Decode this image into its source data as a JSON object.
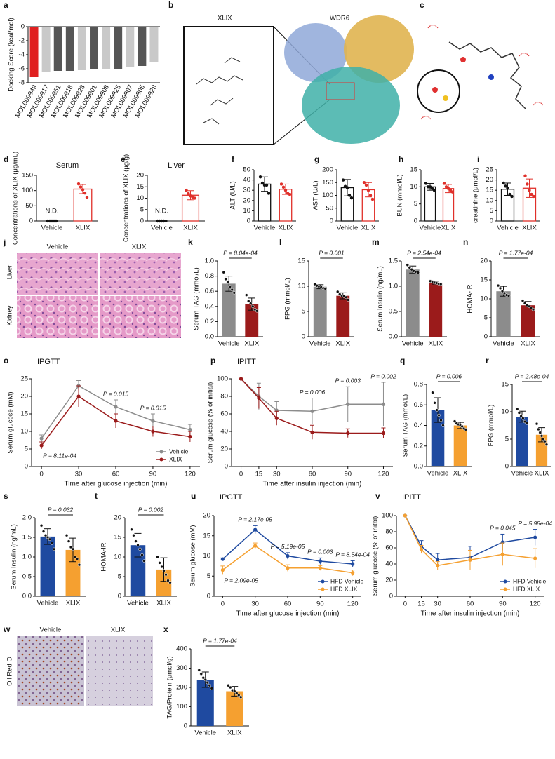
{
  "figures": [
    {
      "panel": "b",
      "labels": [
        "XLIX",
        "WDR6"
      ]
    },
    {
      "panel": "c"
    },
    {
      "panel": "j",
      "columns": [
        "Vehicle",
        "XLIX"
      ],
      "rows": [
        "Liver",
        "Kidney"
      ]
    },
    {
      "panel": "w",
      "columns": [
        "Vehicle",
        "XLIX"
      ],
      "rows": [
        "Oil Red O"
      ]
    }
  ],
  "chart_data": [
    {
      "panel": "a",
      "type": "bar",
      "ylabel": "Docking Score (kcal/mol)",
      "categories": [
        "MOL009949",
        "MOL009917",
        "MOL009951",
        "MOL009918",
        "MOL009923",
        "MOL009901",
        "MOL009908",
        "MOL009925",
        "MOL009907",
        "MOL009905",
        "MOL009928"
      ],
      "values": [
        -7.2,
        -6.5,
        -6.3,
        -6.3,
        -6.2,
        -6.1,
        -6.1,
        -6.0,
        -5.8,
        -5.6,
        -5.1
      ],
      "colors": [
        "#e02020",
        "#c9c9c9",
        "#555555",
        "#555555",
        "#c9c9c9",
        "#555555",
        "#c9c9c9",
        "#555555",
        "#c9c9c9",
        "#555555",
        "#c9c9c9"
      ],
      "highlight_index": 0,
      "ylim": [
        -8,
        0
      ],
      "yticks": [
        0,
        -2,
        -4,
        -6,
        -8
      ]
    },
    {
      "panel": "d",
      "type": "bar",
      "style": "outline",
      "title": "Serum",
      "ylabel": "Concentrations of XLIX (μg/mL)",
      "categories": [
        "Vehicle",
        "XLIX"
      ],
      "values": [
        null,
        105
      ],
      "value_labels": [
        "N.D.",
        null
      ],
      "errors": [
        null,
        15
      ],
      "points": [
        [
          0,
          0,
          0,
          0,
          0
        ],
        [
          122,
          112,
          103,
          92,
          78
        ]
      ],
      "colors": [
        "#111111",
        "#e0302a"
      ],
      "ylim": [
        0,
        150
      ],
      "yticks": [
        0,
        50,
        100,
        150
      ]
    },
    {
      "panel": "e",
      "type": "bar",
      "style": "outline",
      "title": "Liver",
      "ylabel": "Concentrations of XLIX (μg/g)",
      "categories": [
        "Vehicle",
        "XLIX"
      ],
      "values": [
        null,
        11.3
      ],
      "value_labels": [
        "N.D.",
        null
      ],
      "errors": [
        null,
        2
      ],
      "points": [
        [
          0,
          0,
          0,
          0,
          0
        ],
        [
          13.5,
          12,
          11,
          10.5,
          10
        ]
      ],
      "colors": [
        "#111111",
        "#e0302a"
      ],
      "ylim": [
        0,
        20
      ],
      "yticks": [
        0,
        5,
        10,
        15,
        20
      ]
    },
    {
      "panel": "f",
      "type": "bar",
      "style": "outline",
      "ylabel": "ALT (U/L)",
      "categories": [
        "Vehicle",
        "XLIX"
      ],
      "values": [
        36,
        31
      ],
      "errors": [
        7,
        5
      ],
      "points": [
        [
          43,
          37,
          35,
          35,
          27
        ],
        [
          36,
          33,
          30,
          27,
          26
        ]
      ],
      "colors": [
        "#111111",
        "#e0302a"
      ],
      "ylim": [
        0,
        50
      ],
      "yticks": [
        0,
        10,
        20,
        30,
        40,
        50
      ]
    },
    {
      "panel": "g",
      "type": "bar",
      "style": "outline",
      "ylabel": "AST (U/L)",
      "categories": [
        "Vehicle",
        "XLIX"
      ],
      "values": [
        130,
        122
      ],
      "errors": [
        32,
        28
      ],
      "points": [
        [
          160,
          135,
          130,
          100,
          90
        ],
        [
          150,
          140,
          120,
          100,
          85
        ]
      ],
      "colors": [
        "#111111",
        "#e0302a"
      ],
      "ylim": [
        0,
        200
      ],
      "yticks": [
        0,
        50,
        100,
        150,
        200
      ]
    },
    {
      "panel": "h",
      "type": "bar",
      "style": "outline",
      "ylabel": "BUN (mmol/L)",
      "categories": [
        "Vehicle",
        "XLIX"
      ],
      "values": [
        10,
        9.5
      ],
      "errors": [
        1,
        1.2
      ],
      "points": [
        [
          11,
          10,
          10,
          9.5,
          9
        ],
        [
          11,
          10,
          9.5,
          9,
          8.5
        ]
      ],
      "colors": [
        "#111111",
        "#e0302a"
      ],
      "ylim": [
        0,
        15
      ],
      "yticks": [
        0,
        5,
        10,
        15
      ]
    },
    {
      "panel": "i",
      "type": "bar",
      "style": "outline",
      "ylabel": "creatinine (μmol/L)",
      "categories": [
        "Vehicle",
        "XLIX"
      ],
      "values": [
        15.5,
        16
      ],
      "errors": [
        3,
        4.5
      ],
      "points": [
        [
          18.5,
          17,
          16,
          13,
          12
        ],
        [
          22,
          18,
          15,
          13,
          12
        ]
      ],
      "colors": [
        "#111111",
        "#e0302a"
      ],
      "ylim": [
        0,
        25
      ],
      "yticks": [
        0,
        5,
        10,
        15,
        20,
        25
      ]
    },
    {
      "panel": "k",
      "type": "bar",
      "ylabel": "Serum TAG (mmol/L)",
      "p_value": "P = 8.04e-04",
      "categories": [
        "Vehicle",
        "XLIX"
      ],
      "values": [
        0.7,
        0.43
      ],
      "errors": [
        0.1,
        0.08
      ],
      "points": [
        [
          0.85,
          0.76,
          0.72,
          0.66,
          0.62,
          0.58
        ],
        [
          0.55,
          0.47,
          0.44,
          0.4,
          0.36,
          0.34
        ]
      ],
      "colors": [
        "#8c8c8c",
        "#9b1b1b"
      ],
      "ylim": [
        0,
        1
      ],
      "yticks": [
        {
          "value": 0,
          "label": "0.0"
        },
        0.2,
        0.4,
        0.6,
        0.8,
        {
          "value": 1,
          "label": "1.0"
        }
      ]
    },
    {
      "panel": "l",
      "type": "bar",
      "ylabel": "FPG  (mmol/L)",
      "p_value": "P = 0.001",
      "categories": [
        "Vehicle",
        "XLIX"
      ],
      "values": [
        9.9,
        8.1
      ],
      "errors": [
        0.4,
        0.6
      ],
      "points": [
        [
          10.4,
          10.1,
          9.9,
          9.8,
          9.6,
          9.5
        ],
        [
          8.9,
          8.4,
          8.1,
          8,
          7.8,
          7.3
        ]
      ],
      "colors": [
        "#8c8c8c",
        "#9b1b1b"
      ],
      "ylim": [
        0,
        15
      ],
      "yticks": [
        0,
        5,
        10,
        15
      ]
    },
    {
      "panel": "m",
      "type": "bar",
      "ylabel": "Serum Insulin (ng/mL)",
      "p_value": "P = 2.54e-04",
      "categories": [
        "Vehicle",
        "XLIX"
      ],
      "values": [
        1.33,
        1.07
      ],
      "errors": [
        0.07,
        0.03
      ],
      "points": [
        [
          1.42,
          1.37,
          1.33,
          1.3,
          1.28,
          1.27
        ],
        [
          1.1,
          1.09,
          1.07,
          1.06,
          1.05,
          1.04
        ]
      ],
      "colors": [
        "#8c8c8c",
        "#9b1b1b"
      ],
      "ylim": [
        0,
        1.5
      ],
      "yticks": [
        {
          "value": 0,
          "label": "0.0"
        },
        0.5,
        {
          "value": 1,
          "label": "1.0"
        },
        1.5
      ]
    },
    {
      "panel": "n",
      "type": "bar",
      "ylabel": "HOMA-IR",
      "p_value": "P = 1.77e-04",
      "categories": [
        "Vehicle",
        "XLIX"
      ],
      "values": [
        12,
        8.3
      ],
      "errors": [
        1.3,
        1
      ],
      "points": [
        [
          13.5,
          12.8,
          12,
          11.5,
          11,
          10.8
        ],
        [
          9.5,
          8.8,
          8.3,
          8,
          7.6,
          7.2
        ]
      ],
      "colors": [
        "#8c8c8c",
        "#9b1b1b"
      ],
      "ylim": [
        0,
        20
      ],
      "yticks": [
        0,
        5,
        10,
        15,
        20
      ]
    },
    {
      "panel": "o",
      "type": "line",
      "title": "IPGTT",
      "xlabel": "Time after glucose injection (min)",
      "ylabel": "Serum glucose (mM)",
      "x": [
        0,
        30,
        60,
        90,
        120
      ],
      "xlim": [
        -8,
        128
      ],
      "xticks": [
        0,
        30,
        60,
        90,
        120
      ],
      "ylim": [
        0,
        25
      ],
      "yticks": [
        0,
        5,
        10,
        15,
        20,
        25
      ],
      "legend": "lower right",
      "p_values": [
        "P = 8.11e-04",
        null,
        "P = 0.015",
        "P = 0.015",
        null
      ],
      "series": [
        {
          "name": "Vehicle",
          "color": "#8c8c8c",
          "values": [
            8,
            23,
            17,
            13,
            10.5
          ],
          "errors": [
            1,
            1.5,
            2,
            2,
            1.5
          ]
        },
        {
          "name": "XLIX",
          "color": "#9b1b1b",
          "values": [
            6,
            20,
            13,
            10,
            8.5
          ],
          "errors": [
            1,
            3,
            2,
            1.5,
            1.5
          ]
        }
      ]
    },
    {
      "panel": "p",
      "type": "line",
      "title": "IPITT",
      "xlabel": "Time after insulin injection (min)",
      "ylabel": "Serum glucose (% of initial)",
      "x": [
        0,
        15,
        30,
        60,
        90,
        120
      ],
      "xlim": [
        -8,
        128
      ],
      "xticks": [
        0,
        15,
        30,
        60,
        90,
        120
      ],
      "ylim": [
        0,
        100
      ],
      "yticks": [
        0,
        20,
        40,
        60,
        80,
        100
      ],
      "p_values": [
        null,
        null,
        null,
        "P = 0.006",
        "P = 0.003",
        "P = 0.002"
      ],
      "series": [
        {
          "color": "#8c8c8c",
          "values": [
            100,
            80,
            64,
            63,
            71,
            71
          ],
          "errors": [
            0,
            15,
            10,
            15,
            20,
            25
          ]
        },
        {
          "color": "#9b1b1b",
          "values": [
            100,
            78,
            55,
            39,
            38,
            38
          ],
          "errors": [
            0,
            12,
            8,
            8,
            5,
            6
          ]
        }
      ]
    },
    {
      "panel": "q",
      "type": "bar",
      "ylabel": "Serum TAG (mmol/L)",
      "p_value": "P = 0.006",
      "categories": [
        "Vehicle",
        "XLIX"
      ],
      "values": [
        0.55,
        0.4
      ],
      "errors": [
        0.12,
        0.03
      ],
      "points": [
        [
          0.72,
          0.62,
          0.55,
          0.5,
          0.45,
          0.4
        ],
        [
          0.44,
          0.42,
          0.41,
          0.4,
          0.39,
          0.37,
          0.36
        ]
      ],
      "colors": [
        "#1f4aa0",
        "#f5a030"
      ],
      "ylim": [
        0,
        0.8
      ],
      "yticks": [
        {
          "value": 0,
          "label": "0.0"
        },
        0.2,
        0.4,
        0.6,
        0.8
      ]
    },
    {
      "panel": "r",
      "type": "bar",
      "ylabel": "FPG (mmol/L)",
      "p_value": "P = 2.48e-04",
      "categories": [
        "Vehicle",
        "XLIX"
      ],
      "values": [
        9.1,
        5.8
      ],
      "errors": [
        1,
        1.3
      ],
      "points": [
        [
          10.5,
          9.8,
          9.2,
          8.8,
          8.2,
          7.9
        ],
        [
          7.8,
          6.8,
          6.2,
          5.6,
          5,
          4.6,
          4
        ]
      ],
      "colors": [
        "#1f4aa0",
        "#f5a030"
      ],
      "ylim": [
        0,
        15
      ],
      "yticks": [
        0,
        5,
        10,
        15
      ]
    },
    {
      "panel": "s",
      "type": "bar",
      "ylabel": "Serum Insulin (ng/mL)",
      "p_value": "P = 0.032",
      "categories": [
        "Vehicle",
        "XLIX"
      ],
      "values": [
        1.52,
        1.18
      ],
      "errors": [
        0.2,
        0.3
      ],
      "points": [
        [
          1.8,
          1.65,
          1.55,
          1.5,
          1.45,
          1.35,
          1.2
        ],
        [
          1.55,
          1.4,
          1.25,
          1.2,
          1,
          0.95,
          0.8
        ]
      ],
      "colors": [
        "#1f4aa0",
        "#f5a030"
      ],
      "ylim": [
        0,
        2
      ],
      "yticks": [
        {
          "value": 0,
          "label": "0.0"
        },
        0.5,
        {
          "value": 1,
          "label": "1.0"
        },
        1.5,
        {
          "value": 2,
          "label": "2.0"
        }
      ]
    },
    {
      "panel": "t",
      "type": "bar",
      "ylabel": "HOMA-IR",
      "p_value": "P = 0.002",
      "categories": [
        "Vehicle",
        "XLIX"
      ],
      "values": [
        13,
        6.8
      ],
      "errors": [
        3,
        3
      ],
      "points": [
        [
          17,
          15.5,
          14,
          13,
          12,
          10.5,
          9
        ],
        [
          10,
          8.5,
          7.5,
          6.5,
          5.5,
          4,
          3.5
        ]
      ],
      "colors": [
        "#1f4aa0",
        "#f5a030"
      ],
      "ylim": [
        0,
        20
      ],
      "yticks": [
        0,
        5,
        10,
        15,
        20
      ]
    },
    {
      "panel": "u",
      "type": "line",
      "title": "IPGTT",
      "xlabel": "Time after glucose injection (min)",
      "ylabel": "Serum glucose (mM)",
      "x": [
        0,
        30,
        60,
        90,
        120
      ],
      "xlim": [
        -8,
        128
      ],
      "xticks": [
        0,
        30,
        60,
        90,
        120
      ],
      "ylim": [
        0,
        20
      ],
      "yticks": [
        0,
        5,
        10,
        15,
        20
      ],
      "legend": "lower right",
      "p_values": [
        "P = 2.09e-05",
        "P = 2.17e-05",
        "P = 5.19e-05",
        "P = 0.003",
        "P = 8.54e-04"
      ],
      "series": [
        {
          "name": "HFD Vehicle",
          "color": "#1f4aa0",
          "values": [
            9.2,
            16.5,
            10,
            8.7,
            8
          ],
          "errors": [
            0.3,
            1,
            0.8,
            0.8,
            0.8
          ]
        },
        {
          "name": "HFD XLIX",
          "color": "#f5a030",
          "values": [
            6.5,
            12.5,
            7,
            7,
            5.8
          ],
          "errors": [
            1,
            0.7,
            0.8,
            0.6,
            0.7
          ]
        }
      ]
    },
    {
      "panel": "v",
      "type": "line",
      "title": "IPITT",
      "xlabel": "Time after insulin injection (min)",
      "ylabel": "Serum glucose (% of inital)",
      "x": [
        0,
        15,
        30,
        60,
        90,
        120
      ],
      "xlim": [
        -8,
        128
      ],
      "xticks": [
        0,
        15,
        30,
        60,
        90,
        120
      ],
      "ylim": [
        0,
        100
      ],
      "yticks": [
        0,
        20,
        40,
        60,
        80,
        100
      ],
      "legend": "lower right",
      "p_values": [
        null,
        null,
        null,
        null,
        "P = 0.045",
        "P = 5.98e-04"
      ],
      "series": [
        {
          "name": "HFD Vehicle",
          "color": "#1f4aa0",
          "values": [
            100,
            62,
            45,
            48,
            67,
            73
          ],
          "errors": [
            0,
            7,
            8,
            14,
            10,
            10
          ]
        },
        {
          "name": "HFD XLIX",
          "color": "#f5a030",
          "values": [
            100,
            58,
            38,
            45,
            52,
            47
          ],
          "errors": [
            0,
            5,
            5,
            12,
            14,
            12
          ]
        }
      ]
    },
    {
      "panel": "x",
      "type": "bar",
      "ylabel": "TAG/Protein (μmol/g)",
      "p_value": "P = 1.77e-04",
      "categories": [
        "Vehicle",
        "XLIX"
      ],
      "values": [
        240,
        180
      ],
      "errors": [
        40,
        25
      ],
      "points": [
        [
          290,
          270,
          250,
          240,
          225,
          210,
          195
        ],
        [
          210,
          200,
          185,
          180,
          170,
          160,
          150
        ]
      ],
      "colors": [
        "#1f4aa0",
        "#f5a030"
      ],
      "ylim": [
        0,
        400
      ],
      "yticks": [
        0,
        100,
        200,
        300,
        400
      ]
    }
  ]
}
